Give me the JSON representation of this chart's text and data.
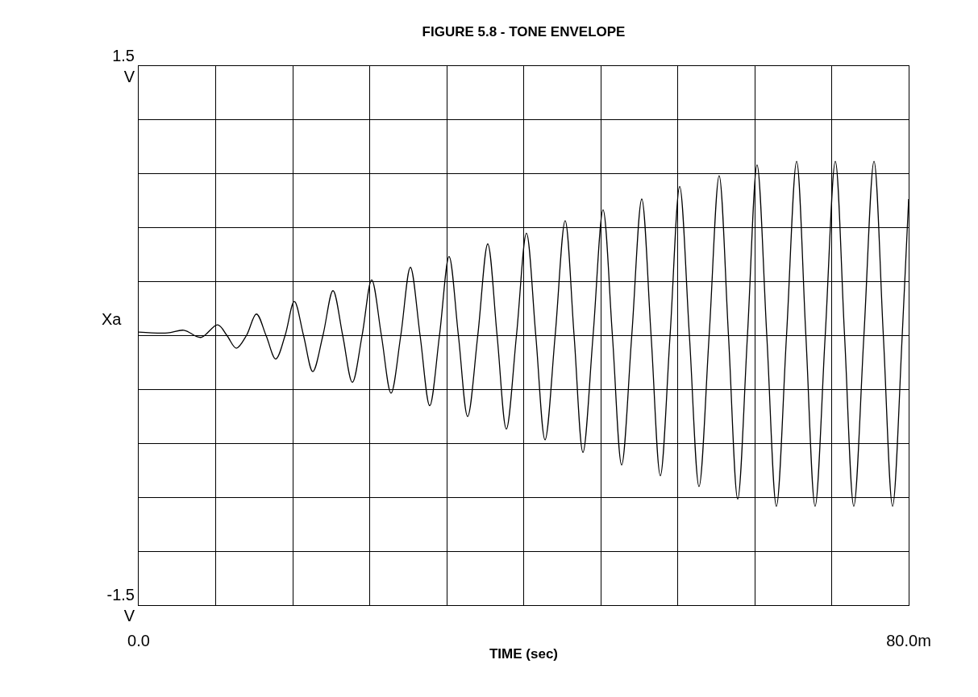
{
  "chart_data": {
    "type": "line",
    "title": "FIGURE 5.8 - TONE ENVELOPE",
    "xlabel": "TIME (sec)",
    "ylabel": "Xa",
    "x": [
      0,
      3.0,
      4.69,
      6.45,
      8.21,
      9.18,
      10.14,
      11.19,
      12.23,
      13.24,
      14.24,
      15.21,
      16.17,
      17.13,
      18.09,
      19.14,
      20.19,
      21.2,
      22.2,
      23.21,
      24.21,
      25.22,
      26.22,
      27.23,
      28.23,
      29.24,
      30.24,
      31.25,
      32.25,
      33.22,
      34.18,
      35.23,
      36.27,
      37.24,
      38.2,
      39.25,
      40.29,
      41.26,
      42.22,
      43.27,
      44.31,
      45.24,
      46.16,
      47.21,
      48.25,
      49.22,
      50.18,
      51.23,
      52.27,
      53.24,
      54.2,
      55.21,
      56.21,
      57.22,
      58.22,
      59.27,
      60.31,
      61.28,
      62.24,
      63.25,
      64.25,
      65.26,
      66.26,
      67.31,
      68.36,
      69.32,
      70.28,
      71.33,
      72.38,
      73.34,
      74.3,
      75.35,
      76.4,
      77.37,
      78.33,
      79.33,
      80
    ],
    "series": [
      {
        "color": "#000000",
        "values": [
          0.02,
          0.015,
          0.03,
          -0.01,
          0.06,
          0,
          -0.07,
          0,
          0.12,
          0,
          -0.13,
          0,
          0.19,
          0,
          -0.2,
          0,
          0.25,
          0,
          -0.26,
          0,
          0.31,
          0,
          -0.32,
          0,
          0.38,
          0,
          -0.39,
          0,
          0.44,
          0,
          -0.45,
          0,
          0.51,
          0,
          -0.52,
          0,
          0.57,
          0,
          -0.58,
          0,
          0.64,
          0,
          -0.65,
          0,
          0.7,
          0,
          -0.72,
          0,
          0.76,
          0,
          -0.78,
          0,
          0.83,
          0,
          -0.84,
          0,
          0.89,
          0,
          -0.91,
          0,
          0.95,
          0,
          -0.95,
          0,
          0.97,
          0,
          -0.95,
          0,
          0.97,
          0,
          -0.95,
          0,
          0.97,
          0,
          -0.95,
          0,
          0.76
        ]
      }
    ],
    "xlim": [
      0,
      80
    ],
    "ylim": [
      -1.5,
      1.5
    ],
    "xticks": [
      {
        "value": 0,
        "label": "0.0"
      },
      {
        "value": 8,
        "label": null
      },
      {
        "value": 16,
        "label": null
      },
      {
        "value": 24,
        "label": null
      },
      {
        "value": 32,
        "label": null
      },
      {
        "value": 40,
        "label": null
      },
      {
        "value": 48,
        "label": null
      },
      {
        "value": 56,
        "label": null
      },
      {
        "value": 64,
        "label": null
      },
      {
        "value": 72,
        "label": null
      },
      {
        "value": 80,
        "label": "80.0m"
      }
    ],
    "yticks": [
      {
        "value": -1.5,
        "label": "-1.5\nV"
      },
      {
        "value": -1.2,
        "label": null
      },
      {
        "value": -0.9,
        "label": null
      },
      {
        "value": -0.6,
        "label": null
      },
      {
        "value": -0.3,
        "label": null
      },
      {
        "value": 0,
        "label": null
      },
      {
        "value": 0.3,
        "label": null
      },
      {
        "value": 0.6,
        "label": null
      },
      {
        "value": 0.9,
        "label": null
      },
      {
        "value": 1.2,
        "label": null
      },
      {
        "value": 1.5,
        "label": "1.5\nV"
      }
    ],
    "grid": true
  }
}
